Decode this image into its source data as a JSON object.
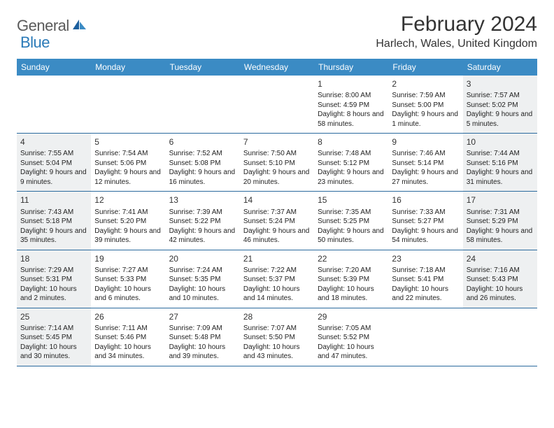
{
  "logo": {
    "part1": "General",
    "part2": "Blue"
  },
  "title": "February 2024",
  "location": "Harlech, Wales, United Kingdom",
  "colors": {
    "header_bg": "#3b8bc4",
    "header_text": "#ffffff",
    "row_border": "#2a6a9e",
    "shaded_bg": "#eef0f1",
    "logo_gray": "#5a5a5a",
    "logo_blue": "#2a7ab8"
  },
  "day_headers": [
    "Sunday",
    "Monday",
    "Tuesday",
    "Wednesday",
    "Thursday",
    "Friday",
    "Saturday"
  ],
  "weeks": [
    [
      {
        "empty": true
      },
      {
        "empty": true
      },
      {
        "empty": true
      },
      {
        "empty": true
      },
      {
        "num": "1",
        "sunrise": "8:00 AM",
        "sunset": "4:59 PM",
        "daylight": "8 hours and 58 minutes."
      },
      {
        "num": "2",
        "sunrise": "7:59 AM",
        "sunset": "5:00 PM",
        "daylight": "9 hours and 1 minute."
      },
      {
        "num": "3",
        "sunrise": "7:57 AM",
        "sunset": "5:02 PM",
        "daylight": "9 hours and 5 minutes.",
        "shaded": true
      }
    ],
    [
      {
        "num": "4",
        "sunrise": "7:55 AM",
        "sunset": "5:04 PM",
        "daylight": "9 hours and 9 minutes.",
        "shaded": true
      },
      {
        "num": "5",
        "sunrise": "7:54 AM",
        "sunset": "5:06 PM",
        "daylight": "9 hours and 12 minutes."
      },
      {
        "num": "6",
        "sunrise": "7:52 AM",
        "sunset": "5:08 PM",
        "daylight": "9 hours and 16 minutes."
      },
      {
        "num": "7",
        "sunrise": "7:50 AM",
        "sunset": "5:10 PM",
        "daylight": "9 hours and 20 minutes."
      },
      {
        "num": "8",
        "sunrise": "7:48 AM",
        "sunset": "5:12 PM",
        "daylight": "9 hours and 23 minutes."
      },
      {
        "num": "9",
        "sunrise": "7:46 AM",
        "sunset": "5:14 PM",
        "daylight": "9 hours and 27 minutes."
      },
      {
        "num": "10",
        "sunrise": "7:44 AM",
        "sunset": "5:16 PM",
        "daylight": "9 hours and 31 minutes.",
        "shaded": true
      }
    ],
    [
      {
        "num": "11",
        "sunrise": "7:43 AM",
        "sunset": "5:18 PM",
        "daylight": "9 hours and 35 minutes.",
        "shaded": true
      },
      {
        "num": "12",
        "sunrise": "7:41 AM",
        "sunset": "5:20 PM",
        "daylight": "9 hours and 39 minutes."
      },
      {
        "num": "13",
        "sunrise": "7:39 AM",
        "sunset": "5:22 PM",
        "daylight": "9 hours and 42 minutes."
      },
      {
        "num": "14",
        "sunrise": "7:37 AM",
        "sunset": "5:24 PM",
        "daylight": "9 hours and 46 minutes."
      },
      {
        "num": "15",
        "sunrise": "7:35 AM",
        "sunset": "5:25 PM",
        "daylight": "9 hours and 50 minutes."
      },
      {
        "num": "16",
        "sunrise": "7:33 AM",
        "sunset": "5:27 PM",
        "daylight": "9 hours and 54 minutes."
      },
      {
        "num": "17",
        "sunrise": "7:31 AM",
        "sunset": "5:29 PM",
        "daylight": "9 hours and 58 minutes.",
        "shaded": true
      }
    ],
    [
      {
        "num": "18",
        "sunrise": "7:29 AM",
        "sunset": "5:31 PM",
        "daylight": "10 hours and 2 minutes.",
        "shaded": true
      },
      {
        "num": "19",
        "sunrise": "7:27 AM",
        "sunset": "5:33 PM",
        "daylight": "10 hours and 6 minutes."
      },
      {
        "num": "20",
        "sunrise": "7:24 AM",
        "sunset": "5:35 PM",
        "daylight": "10 hours and 10 minutes."
      },
      {
        "num": "21",
        "sunrise": "7:22 AM",
        "sunset": "5:37 PM",
        "daylight": "10 hours and 14 minutes."
      },
      {
        "num": "22",
        "sunrise": "7:20 AM",
        "sunset": "5:39 PM",
        "daylight": "10 hours and 18 minutes."
      },
      {
        "num": "23",
        "sunrise": "7:18 AM",
        "sunset": "5:41 PM",
        "daylight": "10 hours and 22 minutes."
      },
      {
        "num": "24",
        "sunrise": "7:16 AM",
        "sunset": "5:43 PM",
        "daylight": "10 hours and 26 minutes.",
        "shaded": true
      }
    ],
    [
      {
        "num": "25",
        "sunrise": "7:14 AM",
        "sunset": "5:45 PM",
        "daylight": "10 hours and 30 minutes.",
        "shaded": true
      },
      {
        "num": "26",
        "sunrise": "7:11 AM",
        "sunset": "5:46 PM",
        "daylight": "10 hours and 34 minutes."
      },
      {
        "num": "27",
        "sunrise": "7:09 AM",
        "sunset": "5:48 PM",
        "daylight": "10 hours and 39 minutes."
      },
      {
        "num": "28",
        "sunrise": "7:07 AM",
        "sunset": "5:50 PM",
        "daylight": "10 hours and 43 minutes."
      },
      {
        "num": "29",
        "sunrise": "7:05 AM",
        "sunset": "5:52 PM",
        "daylight": "10 hours and 47 minutes."
      },
      {
        "empty": true
      },
      {
        "empty": true
      }
    ]
  ]
}
